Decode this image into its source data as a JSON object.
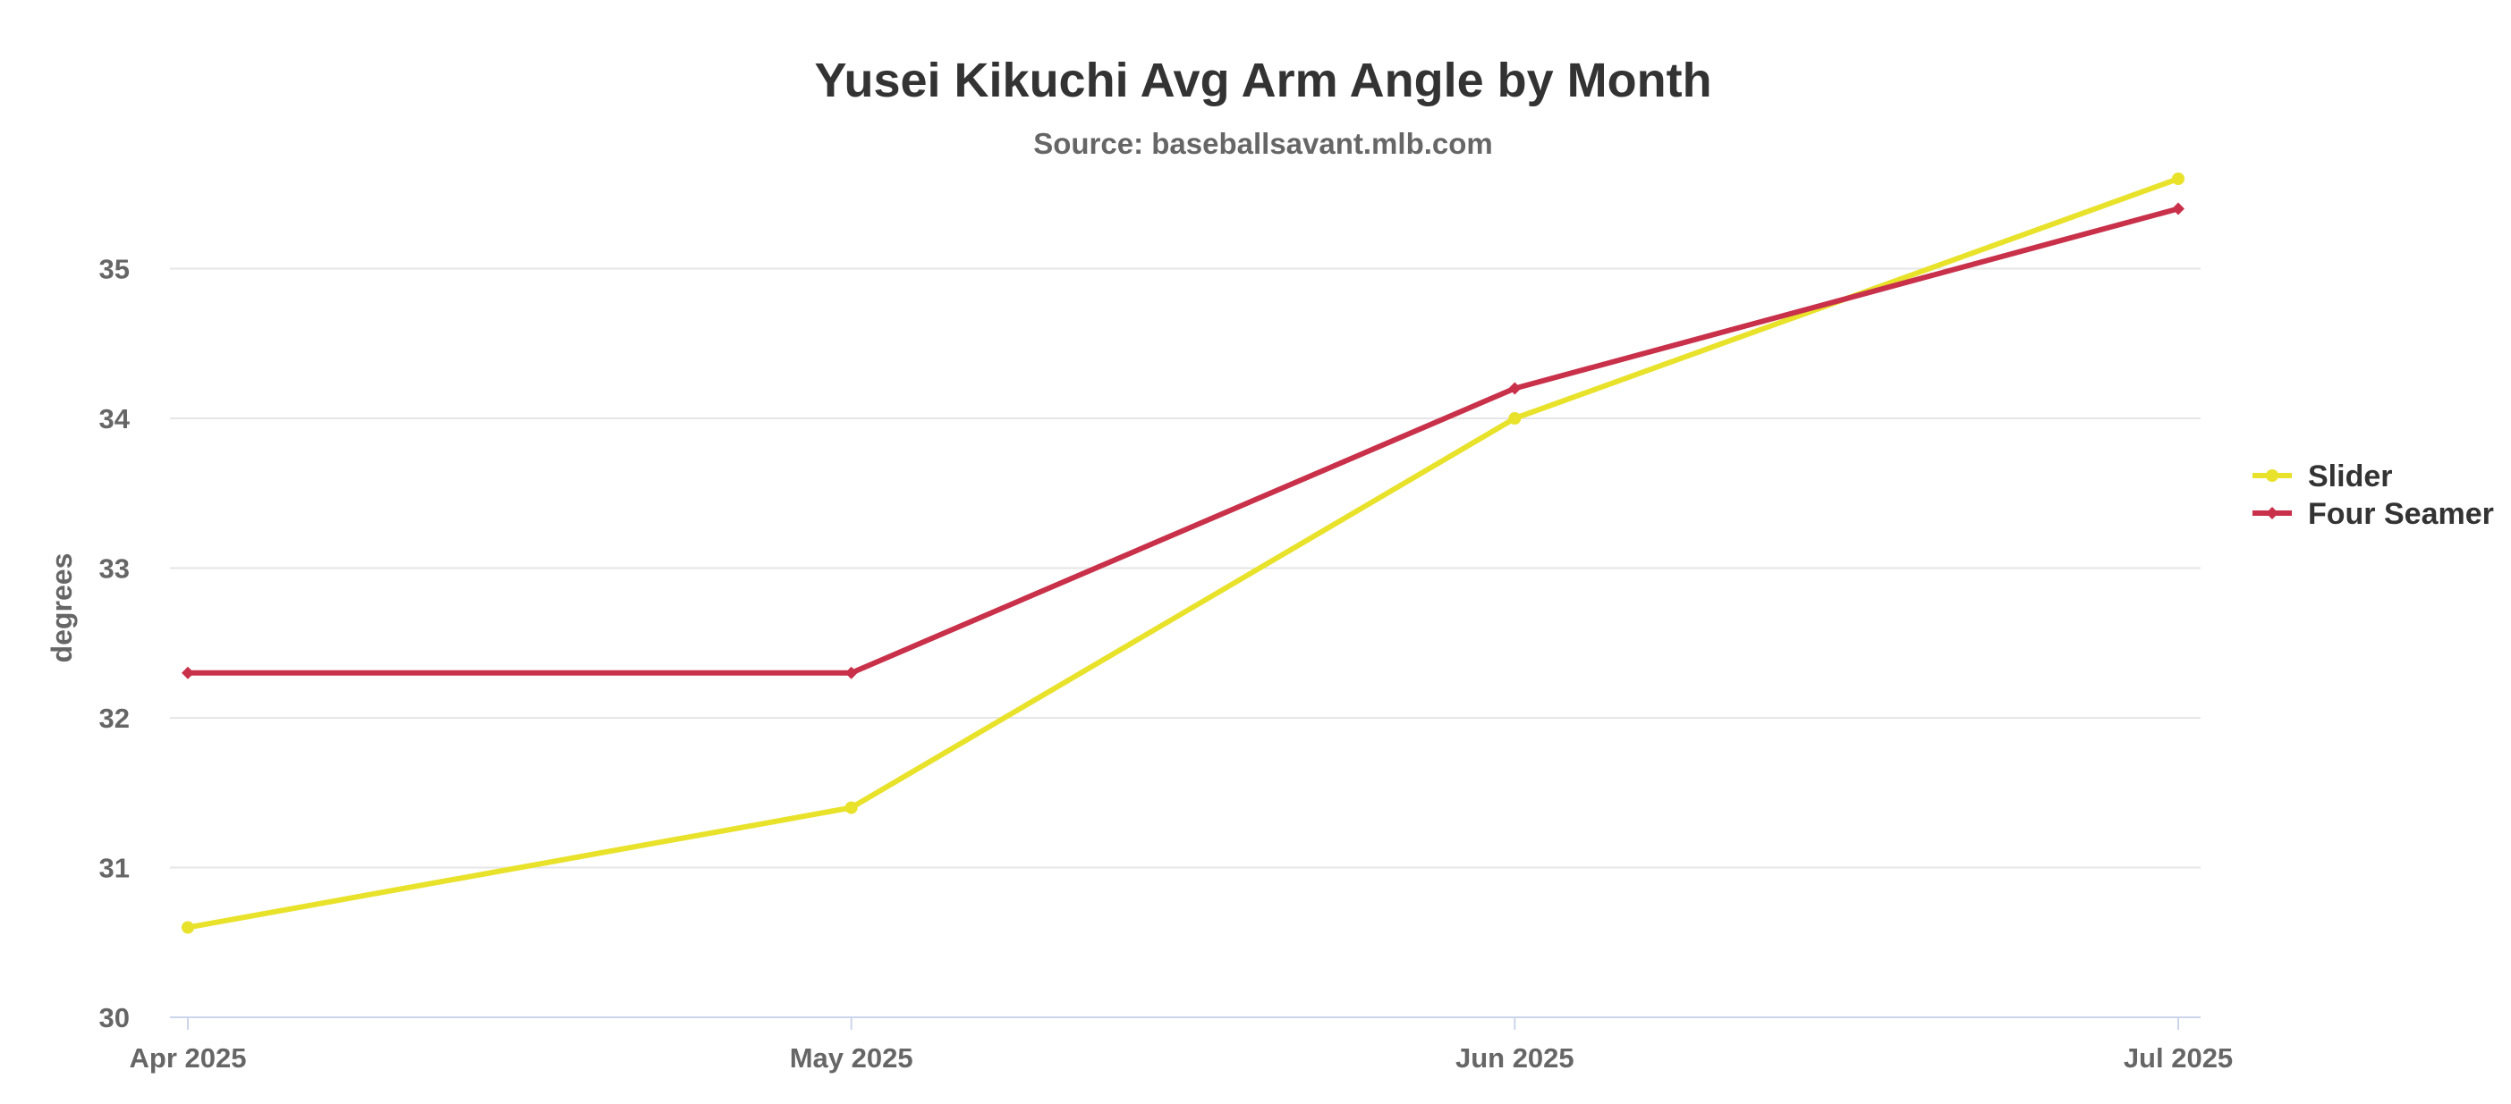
{
  "chart_data": {
    "type": "line",
    "title": "Yusei Kikuchi Avg Arm Angle by Month",
    "subtitle": "Source: baseballsavant.mlb.com",
    "xlabel": "",
    "ylabel": "degrees",
    "categories": [
      "Apr 2025",
      "May 2025",
      "Jun 2025",
      "Jul 2025"
    ],
    "ylim": [
      30,
      35.6
    ],
    "yticks": [
      30,
      31,
      32,
      33,
      34,
      35
    ],
    "grid": true,
    "legend_position": "right",
    "series": [
      {
        "name": "Slider",
        "color": "#e8e22a",
        "marker": "circle",
        "values": [
          30.6,
          31.4,
          34.0,
          35.6
        ]
      },
      {
        "name": "Four Seamer",
        "color": "#c9304a",
        "marker": "diamond",
        "values": [
          32.3,
          32.3,
          34.2,
          35.4
        ]
      }
    ]
  }
}
